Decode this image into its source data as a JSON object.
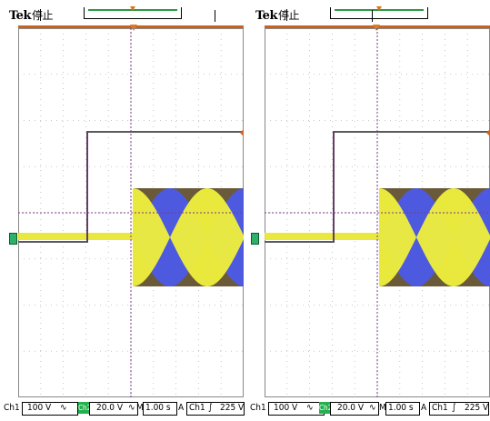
{
  "panels": [
    {
      "brand": "Tek",
      "status": "停止",
      "footer": {
        "ch1_label": "Ch1",
        "ch1_scale": "100 V",
        "ch1_coupling": "∿",
        "ch2_label": "Ch2",
        "ch2_scale": "20.0 V",
        "ch2_coupling": "∿",
        "time_prefix": "M",
        "timebase": "1.00 s",
        "trig_prefix": "A",
        "trig_source": "Ch1",
        "trig_slope": "∫",
        "trig_level": "225 V"
      }
    },
    {
      "brand": "Tek",
      "status": "停止",
      "footer": {
        "ch1_label": "Ch1",
        "ch1_scale": "100 V",
        "ch1_coupling": "∿",
        "ch2_label": "Ch2",
        "ch2_scale": "20.0 V",
        "ch2_coupling": "∿",
        "time_prefix": "M",
        "timebase": "1.00 s",
        "trig_prefix": "A",
        "trig_source": "Ch1",
        "trig_slope": "∫",
        "trig_level": "225 V"
      }
    }
  ],
  "colors": {
    "ch1_trace": "#5a5a5a",
    "ch1_step": "#6a2a6a",
    "ch2_trace": "#e6e62a",
    "phase_a": "#f0f03c",
    "phase_b": "#4c5ae8",
    "phase_c": "#6a5a3a",
    "grid": "#b0b0b0",
    "trigger_marker": "#e07a1c",
    "channel_marker": "#2fb06a"
  }
}
